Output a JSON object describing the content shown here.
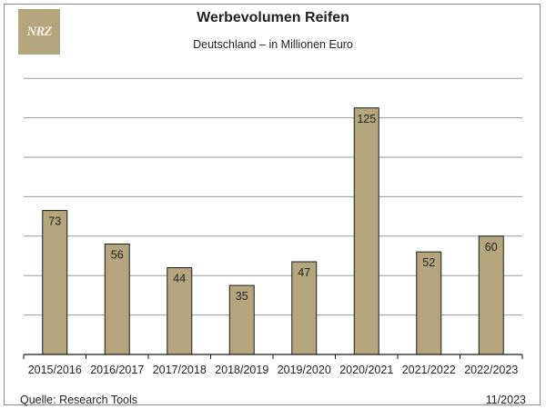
{
  "header": {
    "logo_text": "NRZ",
    "title": "Werbevolumen Reifen",
    "subtitle": "Deutschland – in Millionen Euro"
  },
  "footer": {
    "source": "Quelle: Research Tools",
    "date": "11/2023"
  },
  "colors": {
    "bar": "#b5a57d",
    "bar_stroke": "#1a1a1a",
    "grid": "#9a9a9a",
    "logo": "#b5a57d"
  },
  "chart_data": {
    "type": "bar",
    "categories": [
      "2015/2016",
      "2016/2017",
      "2017/2018",
      "2018/2019",
      "2019/2020",
      "2020/2021",
      "2021/2022",
      "2022/2023"
    ],
    "values": [
      73,
      56,
      44,
      35,
      47,
      125,
      52,
      60
    ],
    "title": "Werbevolumen Reifen",
    "subtitle": "Deutschland – in Millionen Euro",
    "xlabel": "",
    "ylabel": "",
    "ylim": [
      0,
      140
    ],
    "grid": true,
    "legend": "none"
  }
}
